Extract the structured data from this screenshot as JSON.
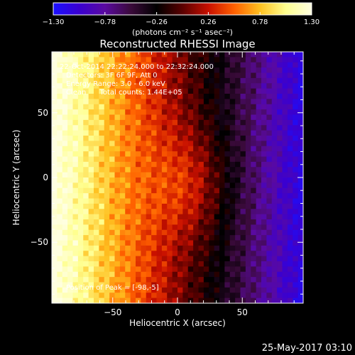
{
  "chart_data": {
    "type": "heatmap",
    "title": "Reconstructed RHESSI Image",
    "xlabel": "Heliocentric X (arcsec)",
    "ylabel": "Heliocentric Y (arcsec)",
    "xlim": [
      -97,
      97
    ],
    "ylim": [
      -97,
      97
    ],
    "xticks": [
      -50,
      0,
      50
    ],
    "xtick_labels": [
      "−50",
      "0",
      "50"
    ],
    "yticks": [
      -50,
      0,
      50
    ],
    "ytick_labels": [
      "−50",
      "0",
      "50"
    ],
    "colorbar": {
      "range": [
        -1.3,
        1.3
      ],
      "ticks": [
        -1.3,
        -0.78,
        -0.26,
        0.26,
        0.78,
        1.3
      ],
      "tick_labels": [
        "−1.30",
        "−0.78",
        "−0.26",
        "0.26",
        "0.78",
        "1.30"
      ],
      "units": "(photons cm⁻² s⁻¹ asec⁻²)",
      "colormap": [
        "#1a10ff",
        "#3a00d0",
        "#5a0aa0",
        "#3a0a3a",
        "#000000",
        "#5a0000",
        "#c81000",
        "#ff6000",
        "#ffc020",
        "#ffff90",
        "#ffffe0"
      ]
    },
    "image_grid": {
      "nx": 48,
      "ny": 48,
      "description_values": "flux decreasing from left (~1.3) to right (~-1.3), with a dark ridge near x=5..15 arcsec"
    },
    "annotations": [
      "22-Oct-2014 22:22:24.000 to 22:32:24.000",
      "Detectors: 3F 6F 9F, Att 0",
      "Energy Range: 3.0 - 6.0 keV",
      "Clean      Total counts: 1.44E+05",
      "Position of Peak = [-98,-5]"
    ],
    "timestamp": "25-May-2017 03:10"
  }
}
